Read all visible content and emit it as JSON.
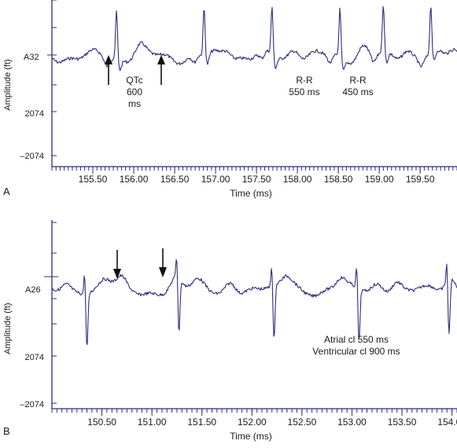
{
  "colors": {
    "trace": "#2b2f7a",
    "axis": "#2b2f7a",
    "text": "#1a1a1a",
    "background": "#ffffff"
  },
  "chart_data": [
    {
      "panel": "A",
      "type": "line",
      "xlabel": "Time (ms)",
      "ylabel": "Amplitude (ft)",
      "channel": "A32",
      "y_ticks": [
        "2074",
        "–2074"
      ],
      "x_ticks": [
        155.5,
        156.0,
        156.5,
        157.0,
        157.5,
        158.0,
        158.5,
        159.0,
        159.5
      ],
      "x_tick_labels": [
        "155.50",
        "156.00",
        "156.50",
        "157.00",
        "157.50",
        "158.00",
        "158.50",
        "159.00",
        "159.50"
      ],
      "xlim": [
        155.0,
        159.95
      ],
      "ylim": [
        -2074,
        3300
      ],
      "baseline": 2074,
      "r_peaks_x": [
        155.79,
        156.86,
        157.69,
        158.52,
        159.05,
        159.63
      ],
      "annotations": {
        "qtc": [
          "QTc",
          "600",
          "ms"
        ],
        "rr1": [
          "R-R",
          "550 ms"
        ],
        "rr2": [
          "R-R",
          "450 ms"
        ]
      },
      "arrows_x": [
        155.74,
        156.33
      ],
      "arrow_direction": "up"
    },
    {
      "panel": "B",
      "type": "line",
      "xlabel": "Time (ms)",
      "ylabel": "Amplitude (ft)",
      "channel": "A26",
      "y_ticks": [
        "2074",
        "–2074"
      ],
      "x_ticks": [
        150.5,
        151.0,
        151.5,
        152.0,
        152.5,
        153.0,
        153.5,
        154.0
      ],
      "x_tick_labels": [
        "150.50",
        "151.00",
        "151.50",
        "152.00",
        "152.50",
        "153.00",
        "153.50",
        "154.00"
      ],
      "xlim": [
        150.0,
        154.05
      ],
      "ylim": [
        -2074,
        3300
      ],
      "baseline": 2074,
      "qrs_x": [
        150.34,
        151.26,
        152.21,
        153.06,
        153.96
      ],
      "annotations": {
        "line1": "Atrial cl 550 ms",
        "line2": "Ventricular cl 900 ms"
      },
      "arrows_x": [
        150.69,
        151.12
      ],
      "arrow_direction": "down"
    }
  ]
}
